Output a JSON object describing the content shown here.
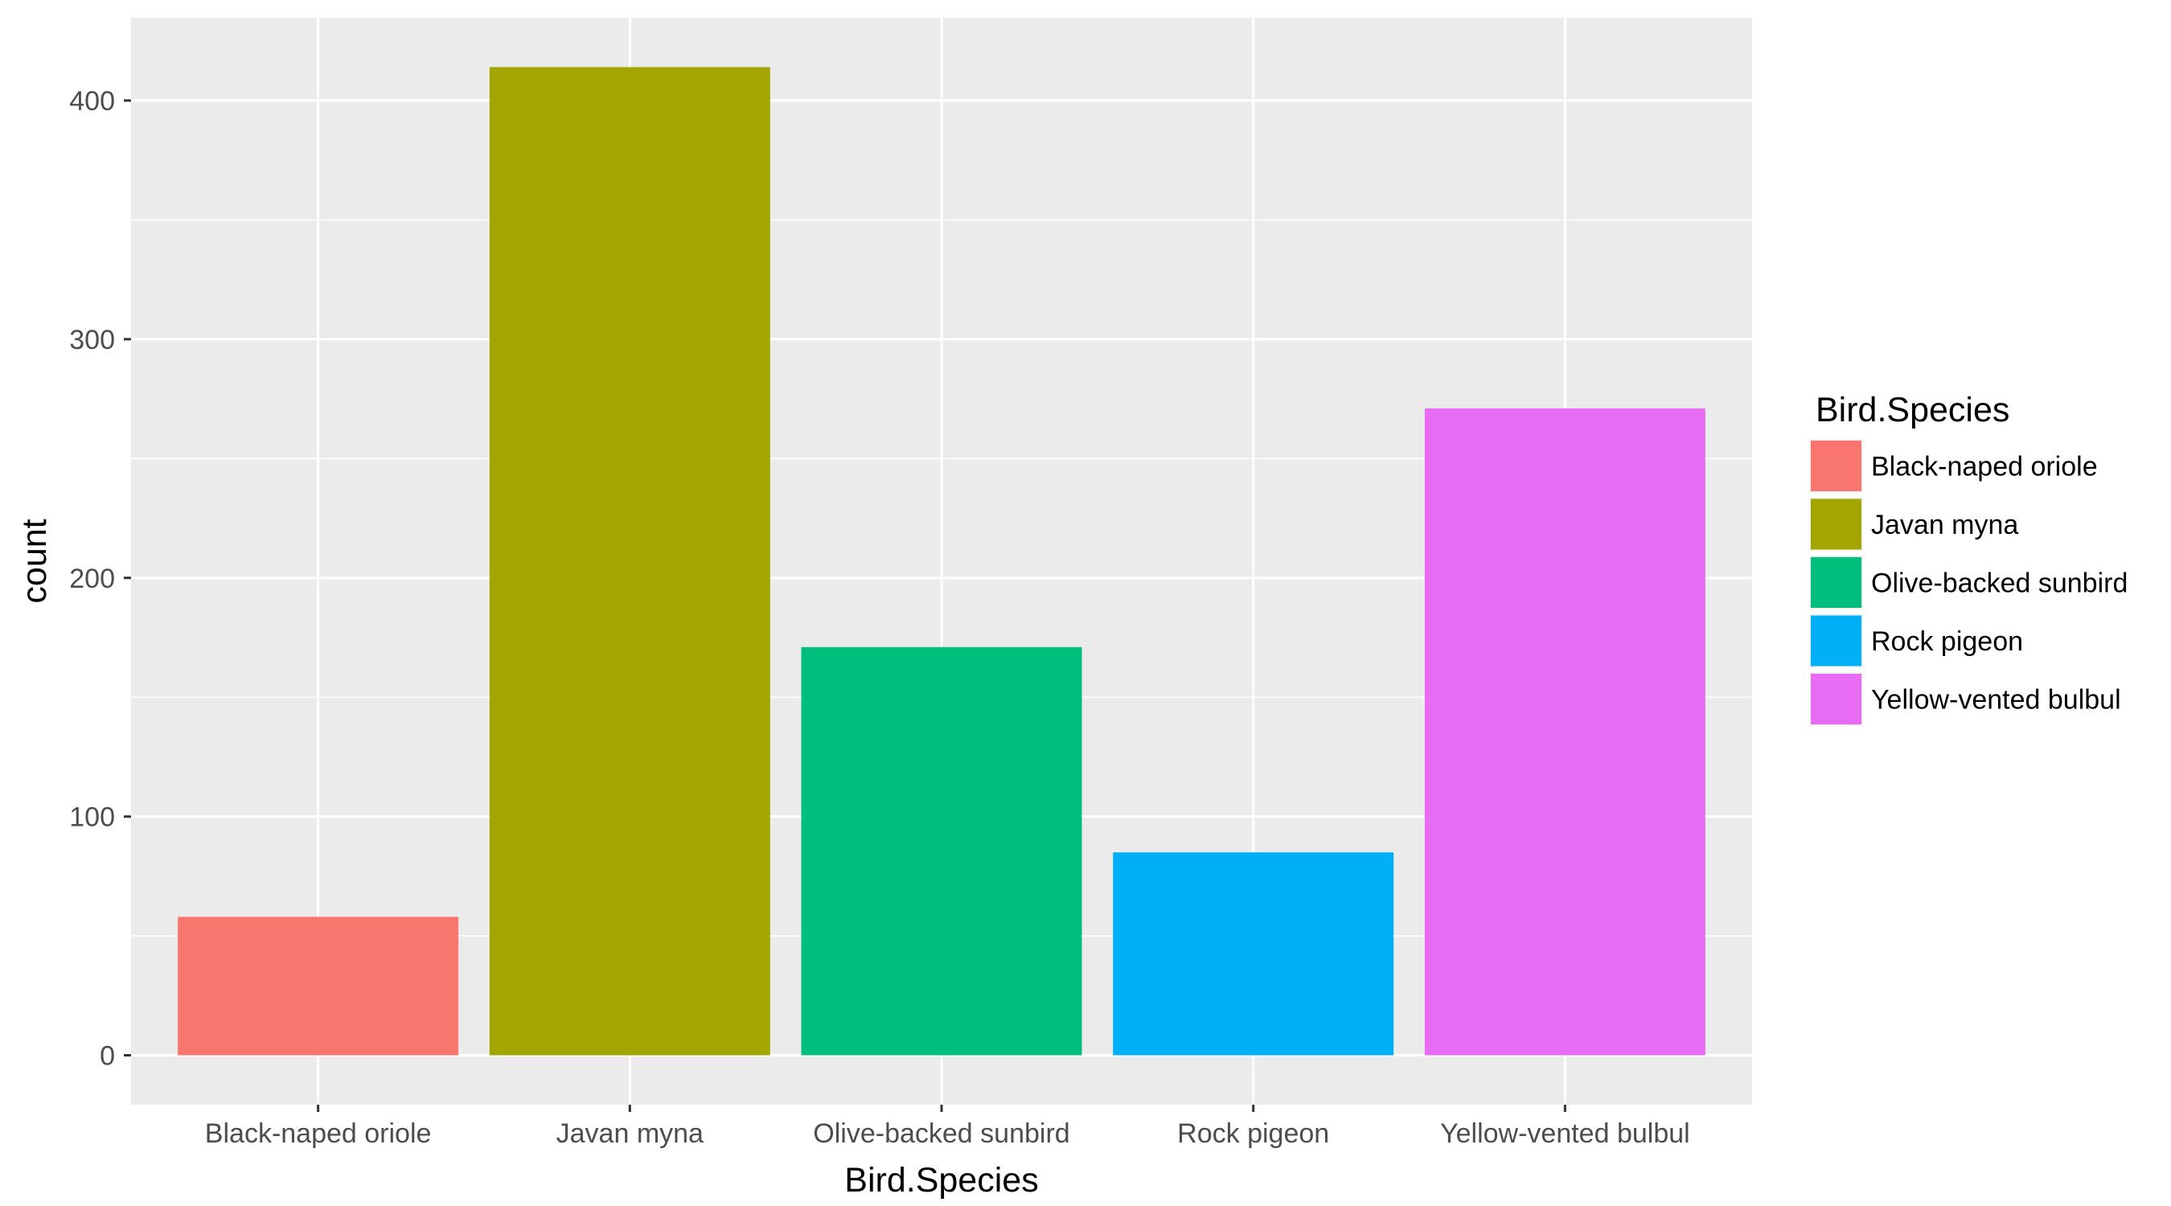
{
  "chart_data": {
    "type": "bar",
    "categories": [
      "Black-naped oriole",
      "Javan myna",
      "Olive-backed sunbird",
      "Rock pigeon",
      "Yellow-vented bulbul"
    ],
    "values": [
      58,
      414,
      171,
      85,
      271
    ],
    "colors": [
      "#F8766D",
      "#A3A500",
      "#00BF7D",
      "#00B0F6",
      "#E76BF3"
    ],
    "xlabel": "Bird.Species",
    "ylabel": "count",
    "yticks": [
      0,
      100,
      200,
      300,
      400
    ],
    "ylim": [
      -20.7,
      434.7
    ],
    "grid": true,
    "legend": {
      "title": "Bird.Species",
      "placement": "right",
      "entries": [
        "Black-naped oriole",
        "Javan myna",
        "Olive-backed sunbird",
        "Rock pigeon",
        "Yellow-vented bulbul"
      ]
    }
  }
}
